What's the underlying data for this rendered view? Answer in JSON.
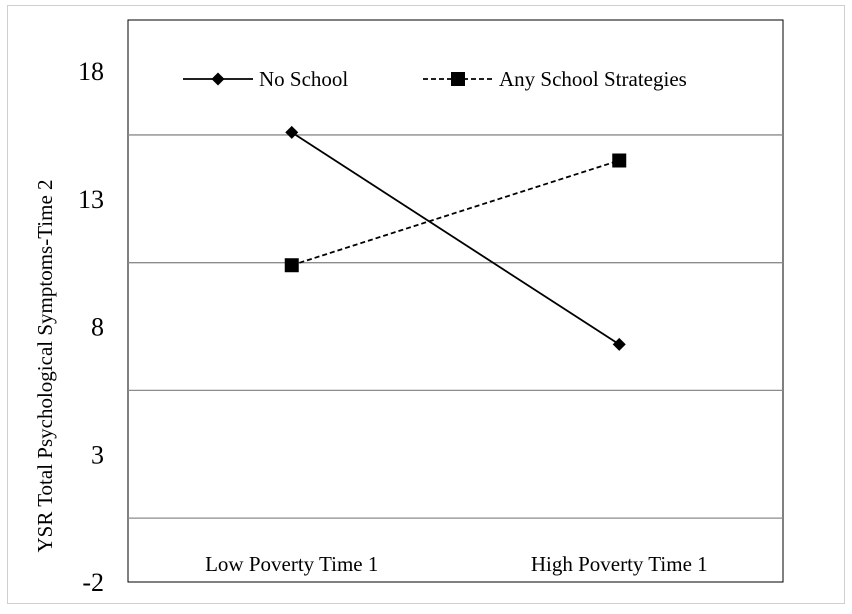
{
  "chart_data": {
    "type": "line",
    "title": "",
    "xlabel": "",
    "ylabel": "YSR Total Psychological Symptoms-Time 2",
    "ylim": [
      -2,
      20
    ],
    "yticks": [
      -2,
      3,
      8,
      13,
      18
    ],
    "categories": [
      "Low Poverty Time 1",
      "High Poverty Time 1"
    ],
    "grid": true,
    "legend_position": "top",
    "series": [
      {
        "name": "No School",
        "values": [
          15.6,
          7.3
        ],
        "marker": "diamond",
        "line_style": "solid",
        "color": "#000000"
      },
      {
        "name": "Any School Strategies",
        "values": [
          10.4,
          14.5
        ],
        "marker": "square",
        "line_style": "dashed",
        "color": "#000000"
      }
    ]
  }
}
